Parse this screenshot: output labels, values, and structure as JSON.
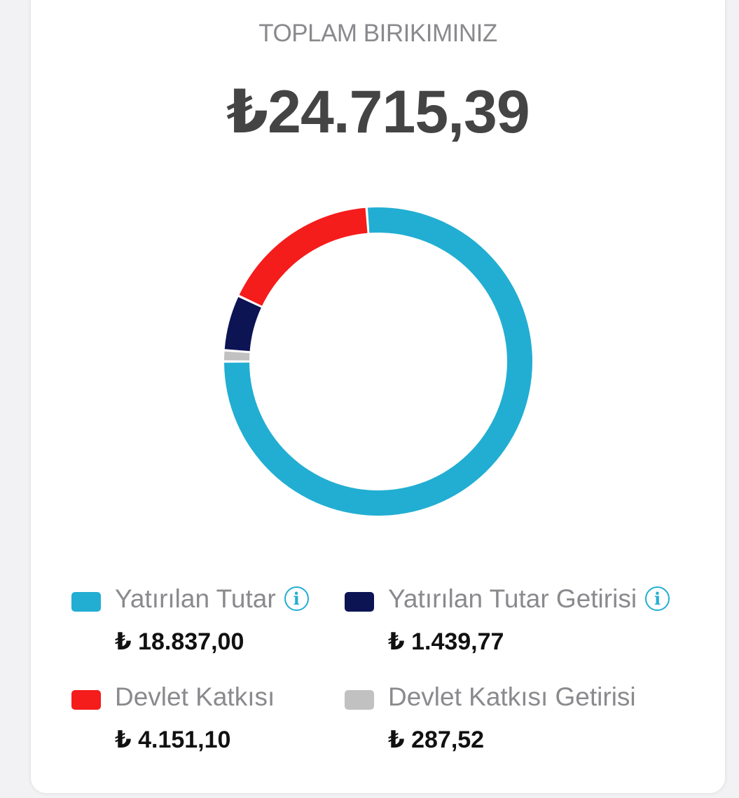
{
  "summary": {
    "title": "TOPLAM BIRIKIMINIZ",
    "total": "₺24.715,39"
  },
  "legend": [
    {
      "label": "Yatırılan Tutar",
      "value": "₺ 18.837,00",
      "color": "#22aed2",
      "has_info": true
    },
    {
      "label": "Yatırılan Tutar Getirisi",
      "value": "₺ 1.439,77",
      "color": "#0d1454",
      "has_info": true
    },
    {
      "label": "Devlet Katkısı",
      "value": "₺ 4.151,10",
      "color": "#f51c1c",
      "has_info": false
    },
    {
      "label": "Devlet Katkısı Getirisi",
      "value": "₺ 287,52",
      "color": "#c1c1c1",
      "has_info": false
    }
  ],
  "chart_data": {
    "type": "pie",
    "title": "",
    "categories": [
      "Yatırılan Tutar",
      "Devlet Katkısı",
      "Yatırılan Tutar Getirisi",
      "Devlet Katkısı Getirisi"
    ],
    "values": [
      18837.0,
      4151.1,
      1439.77,
      287.52
    ],
    "colors": [
      "#22aed2",
      "#f51c1c",
      "#0d1454",
      "#c1c1c1"
    ],
    "donut": true,
    "total": 24715.39
  }
}
